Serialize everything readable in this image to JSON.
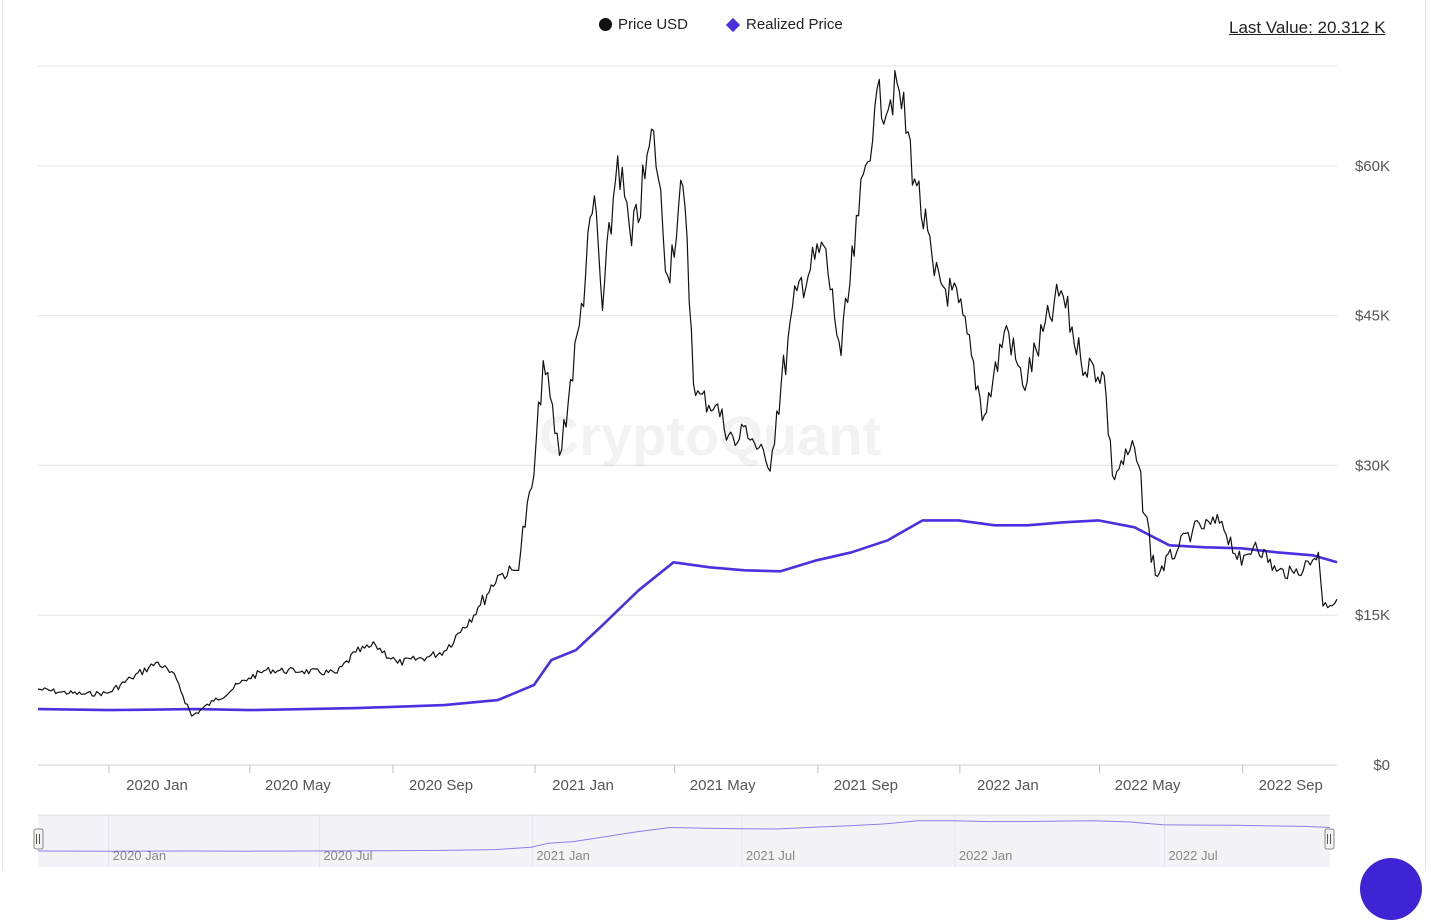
{
  "legend": {
    "price_label": "Price USD",
    "realized_label": "Realized Price"
  },
  "last_value": "Last Value: 20.312 K",
  "watermark": "CryptoQuant",
  "colors": {
    "price": "#111111",
    "realized": "#4b2fe0",
    "grid": "#e3e3e3",
    "navigator_bg": "#f3f3f7"
  },
  "chart_data": {
    "type": "line",
    "x_start": "2019-11-01",
    "x_end": "2022-11-21",
    "ylim": [
      0,
      70000
    ],
    "y_ticks": [
      {
        "value": 0,
        "label": "$0"
      },
      {
        "value": 15000,
        "label": "$15K"
      },
      {
        "value": 30000,
        "label": "$30K"
      },
      {
        "value": 45000,
        "label": "$45K"
      },
      {
        "value": 60000,
        "label": "$60K"
      }
    ],
    "x_ticks": [
      {
        "date": "2020-01-01",
        "label": "2020 Jan"
      },
      {
        "date": "2020-05-01",
        "label": "2020 May"
      },
      {
        "date": "2020-09-01",
        "label": "2020 Sep"
      },
      {
        "date": "2021-01-01",
        "label": "2021 Jan"
      },
      {
        "date": "2021-05-01",
        "label": "2021 May"
      },
      {
        "date": "2021-09-01",
        "label": "2021 Sep"
      },
      {
        "date": "2022-01-01",
        "label": "2022 Jan"
      },
      {
        "date": "2022-05-01",
        "label": "2022 May"
      },
      {
        "date": "2022-09-01",
        "label": "2022 Sep"
      }
    ],
    "navigator_ticks": [
      {
        "date": "2020-01-01",
        "label": "2020 Jan"
      },
      {
        "date": "2020-07-01",
        "label": "2020 Jul"
      },
      {
        "date": "2021-01-01",
        "label": "2021 Jan"
      },
      {
        "date": "2021-07-01",
        "label": "2021 Jul"
      },
      {
        "date": "2022-01-01",
        "label": "2022 Jan"
      },
      {
        "date": "2022-07-01",
        "label": "2022 Jul"
      }
    ],
    "series": [
      {
        "name": "Price USD",
        "points": [
          [
            "2019-11-01",
            7600
          ],
          [
            "2019-11-20",
            7300
          ],
          [
            "2019-12-10",
            7100
          ],
          [
            "2019-12-31",
            7200
          ],
          [
            "2020-01-20",
            8700
          ],
          [
            "2020-02-12",
            10300
          ],
          [
            "2020-02-28",
            8600
          ],
          [
            "2020-03-12",
            4900
          ],
          [
            "2020-03-31",
            6400
          ],
          [
            "2020-04-30",
            8700
          ],
          [
            "2020-05-15",
            9500
          ],
          [
            "2020-06-15",
            9400
          ],
          [
            "2020-07-15",
            9200
          ],
          [
            "2020-07-31",
            11300
          ],
          [
            "2020-08-17",
            12000
          ],
          [
            "2020-09-05",
            10200
          ],
          [
            "2020-09-30",
            10800
          ],
          [
            "2020-10-15",
            11400
          ],
          [
            "2020-10-31",
            13800
          ],
          [
            "2020-11-15",
            16000
          ],
          [
            "2020-11-30",
            19000
          ],
          [
            "2020-12-16",
            19500
          ],
          [
            "2020-12-31",
            29000
          ],
          [
            "2021-01-08",
            40500
          ],
          [
            "2021-01-22",
            31000
          ],
          [
            "2021-02-08",
            44000
          ],
          [
            "2021-02-21",
            57000
          ],
          [
            "2021-02-28",
            45500
          ],
          [
            "2021-03-13",
            61000
          ],
          [
            "2021-03-25",
            52000
          ],
          [
            "2021-04-13",
            63500
          ],
          [
            "2021-04-25",
            49000
          ],
          [
            "2021-05-08",
            58000
          ],
          [
            "2021-05-19",
            37000
          ],
          [
            "2021-06-05",
            36000
          ],
          [
            "2021-06-22",
            32000
          ],
          [
            "2021-07-01",
            34000
          ],
          [
            "2021-07-20",
            29800
          ],
          [
            "2021-08-14",
            47500
          ],
          [
            "2021-09-06",
            52000
          ],
          [
            "2021-09-21",
            41000
          ],
          [
            "2021-10-06",
            55000
          ],
          [
            "2021-10-20",
            66000
          ],
          [
            "2021-11-10",
            67500
          ],
          [
            "2021-11-25",
            58000
          ],
          [
            "2021-12-10",
            49000
          ],
          [
            "2021-12-31",
            46300
          ],
          [
            "2022-01-22",
            35000
          ],
          [
            "2022-02-10",
            44000
          ],
          [
            "2022-02-24",
            38000
          ],
          [
            "2022-03-29",
            47500
          ],
          [
            "2022-04-15",
            40500
          ],
          [
            "2022-05-05",
            39000
          ],
          [
            "2022-05-12",
            29000
          ],
          [
            "2022-05-31",
            31800
          ],
          [
            "2022-06-18",
            19000
          ],
          [
            "2022-07-08",
            21800
          ],
          [
            "2022-07-20",
            23500
          ],
          [
            "2022-08-14",
            24400
          ],
          [
            "2022-08-31",
            20000
          ],
          [
            "2022-09-12",
            22300
          ],
          [
            "2022-09-30",
            19400
          ],
          [
            "2022-10-15",
            19200
          ],
          [
            "2022-10-31",
            20500
          ],
          [
            "2022-11-05",
            21300
          ],
          [
            "2022-11-09",
            15900
          ],
          [
            "2022-11-21",
            16600
          ]
        ]
      },
      {
        "name": "Realized Price",
        "points": [
          [
            "2019-11-01",
            5600
          ],
          [
            "2020-01-01",
            5500
          ],
          [
            "2020-03-15",
            5600
          ],
          [
            "2020-05-01",
            5500
          ],
          [
            "2020-08-01",
            5700
          ],
          [
            "2020-10-15",
            6000
          ],
          [
            "2020-11-30",
            6500
          ],
          [
            "2020-12-31",
            8000
          ],
          [
            "2021-01-15",
            10500
          ],
          [
            "2021-02-05",
            11500
          ],
          [
            "2021-02-28",
            14000
          ],
          [
            "2021-03-31",
            17500
          ],
          [
            "2021-04-30",
            20300
          ],
          [
            "2021-05-31",
            19800
          ],
          [
            "2021-06-30",
            19500
          ],
          [
            "2021-07-31",
            19400
          ],
          [
            "2021-08-31",
            20500
          ],
          [
            "2021-09-30",
            21300
          ],
          [
            "2021-10-31",
            22500
          ],
          [
            "2021-11-30",
            24500
          ],
          [
            "2021-12-31",
            24500
          ],
          [
            "2022-01-31",
            24000
          ],
          [
            "2022-02-28",
            24000
          ],
          [
            "2022-03-31",
            24300
          ],
          [
            "2022-04-30",
            24500
          ],
          [
            "2022-05-31",
            23800
          ],
          [
            "2022-06-30",
            22000
          ],
          [
            "2022-07-31",
            21800
          ],
          [
            "2022-08-31",
            21700
          ],
          [
            "2022-09-30",
            21300
          ],
          [
            "2022-10-31",
            21000
          ],
          [
            "2022-11-21",
            20312
          ]
        ]
      }
    ]
  }
}
